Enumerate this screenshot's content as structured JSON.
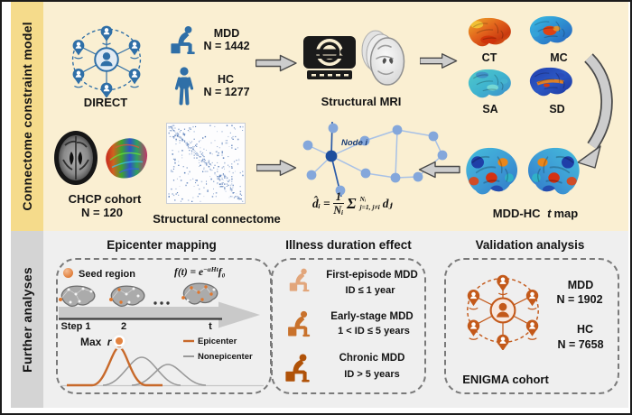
{
  "panel": {
    "top_label": "Connectome constraint model",
    "bottom_label": "Further analyses"
  },
  "colors": {
    "top_bg": "#FAEFD2",
    "top_band": "#F5DB8B",
    "bottom_bg": "#EFEFEF",
    "bottom_band": "#D4D4D4",
    "cohort_blue": "#2F6FA7",
    "cohort_orange": "#C3591A",
    "epicenter_orange": "#C8692A",
    "nonepicenter_gray": "#999999"
  },
  "icons": {
    "direct_network": "people-network-icon",
    "mdd_person": "depressed-person-sitting-icon",
    "hc_person": "standing-person-icon",
    "mri_scanner": "mri-scanner-icon",
    "brain_maps": "brain-surface-map-icon",
    "connectome_matrix": "adjacency-matrix-icon",
    "enigma_network": "people-network-icon",
    "flow_arrow": "block-arrow-icon",
    "seed": "seed-region-dot"
  },
  "direct": {
    "label": "DIRECT"
  },
  "mdd": {
    "label": "MDD",
    "n": "N = 1442"
  },
  "hc": {
    "label": "HC",
    "n": "N = 1277"
  },
  "mri": {
    "label": "Structural MRI"
  },
  "maps": {
    "ct": "CT",
    "mc": "MC",
    "sa": "SA",
    "sd": "SD"
  },
  "chcp": {
    "label": "CHCP cohort",
    "n": "N = 120"
  },
  "connectome": {
    "label": "Structural connectome"
  },
  "node": {
    "label": "Node i"
  },
  "dformula": {
    "lhs": "d̂ᵢ",
    "eq": "=",
    "num": "1",
    "den": "Nᵢ",
    "sigma": "Σ",
    "stack_top": "Nᵢ",
    "stack_bottom": "j=1, j≠i",
    "rhs": "dⱼ"
  },
  "tmap": {
    "pre": "MDD-HC",
    "it": "t",
    "post": "map"
  },
  "epicenter": {
    "title": "Epicenter mapping",
    "seed": "Seed region",
    "f": {
      "pre": "f(t) = e",
      "exp": "−αHt",
      "f0": "f₀"
    },
    "steps": [
      "Step 1",
      "2",
      "t"
    ],
    "max_pre": "Max",
    "max_it": "r",
    "legend": [
      {
        "label": "Epicenter"
      },
      {
        "label": "Nonepicenter"
      }
    ]
  },
  "illness": {
    "title": "Illness duration effect",
    "groups": [
      {
        "name": "First-episode MDD",
        "range": "ID ≤ 1 year"
      },
      {
        "name": "Early-stage MDD",
        "range": "1 < ID ≤ 5 years"
      },
      {
        "name": "Chronic MDD",
        "range": "ID > 5 years"
      }
    ]
  },
  "validation": {
    "title": "Validation analysis",
    "mdd": {
      "label": "MDD",
      "n": "N = 1902"
    },
    "hc": {
      "label": "HC",
      "n": "N = 7658"
    },
    "cohort": "ENIGMA cohort"
  }
}
